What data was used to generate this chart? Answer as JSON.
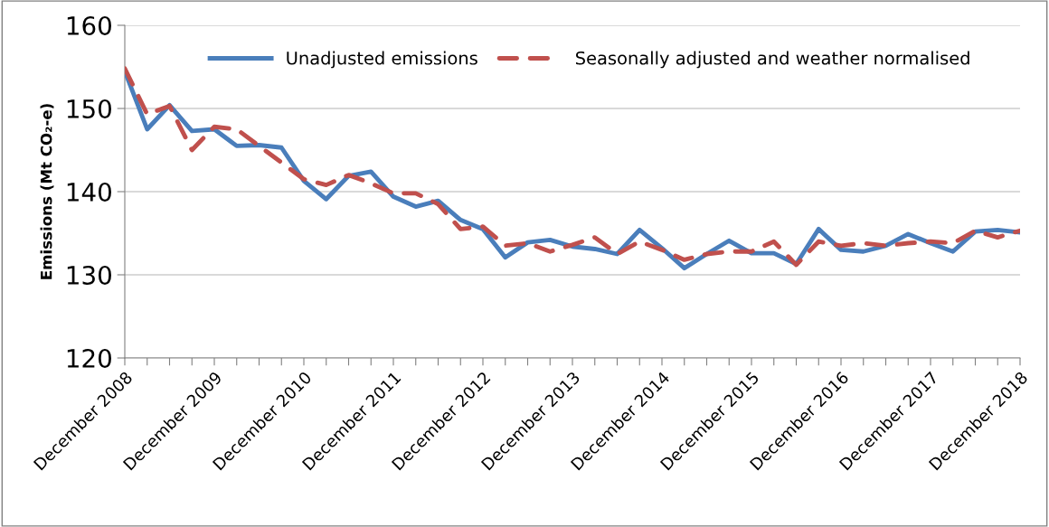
{
  "chart_data": {
    "type": "line",
    "ylabel": "Emissions (Mt CO₂-e)",
    "categories": [
      "December 2008",
      null,
      null,
      null,
      "December 2009",
      null,
      null,
      null,
      "December 2010",
      null,
      null,
      null,
      "December 2011",
      null,
      null,
      null,
      "December 2012",
      null,
      null,
      null,
      "December 2013",
      null,
      null,
      null,
      "December 2014",
      null,
      null,
      null,
      "December 2015",
      null,
      null,
      null,
      "December 2016",
      null,
      null,
      null,
      "December 2017",
      null,
      null,
      null,
      "December 2018"
    ],
    "series": [
      {
        "name": "Unadjusted emissions",
        "color": "#4a7ebb",
        "line_style": "solid",
        "values": [
          154.5,
          147.5,
          150.4,
          147.3,
          147.5,
          145.5,
          145.6,
          145.3,
          141.3,
          139.1,
          141.9,
          142.4,
          139.4,
          138.2,
          138.9,
          136.6,
          135.5,
          132.1,
          133.9,
          134.2,
          133.4,
          133.1,
          132.5,
          135.4,
          133.2,
          130.8,
          132.5,
          134.1,
          132.6,
          132.6,
          131.3,
          135.5,
          133.0,
          132.8,
          133.5,
          134.9,
          133.8,
          132.8,
          135.2,
          135.4,
          135.1
        ]
      },
      {
        "name": "Seasonally adjusted and weather normalised",
        "color": "#c0504d",
        "line_style": "dashed",
        "values": [
          154.8,
          149.3,
          150.3,
          145.0,
          147.8,
          147.5,
          145.5,
          143.5,
          141.5,
          140.8,
          142.0,
          141.0,
          139.8,
          139.8,
          138.5,
          135.5,
          135.8,
          133.5,
          133.8,
          132.8,
          133.6,
          134.5,
          132.5,
          134.0,
          133.0,
          131.8,
          132.5,
          132.8,
          132.8,
          134.0,
          131.2,
          134.0,
          133.5,
          133.8,
          133.5,
          133.8,
          134.0,
          133.8,
          135.3,
          134.5,
          135.3
        ]
      }
    ],
    "ylim": [
      120,
      160
    ],
    "yticks": [
      120,
      130,
      140,
      150,
      160
    ],
    "grid": "y",
    "legend": "top",
    "marker": "none"
  }
}
